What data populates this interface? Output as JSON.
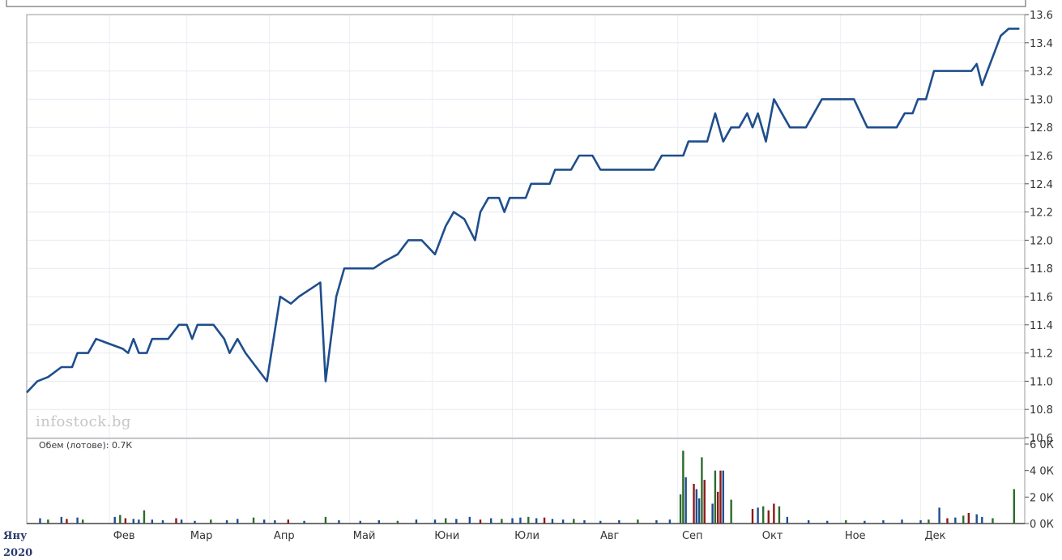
{
  "chart_data": [
    {
      "type": "line",
      "watermark": "infostock.bg",
      "x_range": [
        "2020-01-01",
        "2020-12-31"
      ],
      "ylim": [
        10.6,
        13.6
      ],
      "yticks": [
        "13.6",
        "13.4",
        "13.2",
        "13.0",
        "12.8",
        "12.6",
        "12.4",
        "12.2",
        "12.0",
        "11.8",
        "11.6",
        "11.4",
        "11.2",
        "11.0",
        "10.8",
        "10.6"
      ],
      "xticks": [
        {
          "label": "Яну",
          "date": "2020-01-01"
        },
        {
          "label": "Фев",
          "date": "2020-02-01"
        },
        {
          "label": "Мар",
          "date": "2020-03-01"
        },
        {
          "label": "Апр",
          "date": "2020-04-01"
        },
        {
          "label": "Май",
          "date": "2020-05-01"
        },
        {
          "label": "Юни",
          "date": "2020-06-01"
        },
        {
          "label": "Юли",
          "date": "2020-07-01"
        },
        {
          "label": "Авг",
          "date": "2020-08-01"
        },
        {
          "label": "Сеп",
          "date": "2020-09-01"
        },
        {
          "label": "Окт",
          "date": "2020-10-01"
        },
        {
          "label": "Ное",
          "date": "2020-11-01"
        },
        {
          "label": "Дек",
          "date": "2020-12-01"
        }
      ],
      "year_label": "2020",
      "grid": true,
      "color": "#1f4e8c",
      "series": [
        {
          "points": [
            [
              "2020-01-01",
              10.92
            ],
            [
              "2020-01-05",
              11.0
            ],
            [
              "2020-01-09",
              11.03
            ],
            [
              "2020-01-14",
              11.1
            ],
            [
              "2020-01-18",
              11.1
            ],
            [
              "2020-01-20",
              11.2
            ],
            [
              "2020-01-24",
              11.2
            ],
            [
              "2020-01-27",
              11.3
            ],
            [
              "2020-02-06",
              11.23
            ],
            [
              "2020-02-08",
              11.2
            ],
            [
              "2020-02-10",
              11.3
            ],
            [
              "2020-02-12",
              11.2
            ],
            [
              "2020-02-15",
              11.2
            ],
            [
              "2020-02-17",
              11.3
            ],
            [
              "2020-02-23",
              11.3
            ],
            [
              "2020-02-27",
              11.4
            ],
            [
              "2020-03-01",
              11.4
            ],
            [
              "2020-03-03",
              11.3
            ],
            [
              "2020-03-05",
              11.4
            ],
            [
              "2020-03-11",
              11.4
            ],
            [
              "2020-03-15",
              11.3
            ],
            [
              "2020-03-17",
              11.2
            ],
            [
              "2020-03-20",
              11.3
            ],
            [
              "2020-03-23",
              11.2
            ],
            [
              "2020-03-31",
              11.0
            ],
            [
              "2020-04-05",
              11.6
            ],
            [
              "2020-04-09",
              11.55
            ],
            [
              "2020-04-12",
              11.6
            ],
            [
              "2020-04-16",
              11.65
            ],
            [
              "2020-04-20",
              11.7
            ],
            [
              "2020-04-22",
              11.0
            ],
            [
              "2020-04-26",
              11.6
            ],
            [
              "2020-04-29",
              11.8
            ],
            [
              "2020-05-06",
              11.8
            ],
            [
              "2020-05-10",
              11.8
            ],
            [
              "2020-05-14",
              11.85
            ],
            [
              "2020-05-19",
              11.9
            ],
            [
              "2020-05-23",
              12.0
            ],
            [
              "2020-05-28",
              12.0
            ],
            [
              "2020-06-02",
              11.9
            ],
            [
              "2020-06-06",
              12.1
            ],
            [
              "2020-06-09",
              12.2
            ],
            [
              "2020-06-13",
              12.15
            ],
            [
              "2020-06-17",
              12.0
            ],
            [
              "2020-06-19",
              12.2
            ],
            [
              "2020-06-22",
              12.3
            ],
            [
              "2020-06-26",
              12.3
            ],
            [
              "2020-06-28",
              12.2
            ],
            [
              "2020-06-30",
              12.3
            ],
            [
              "2020-07-06",
              12.3
            ],
            [
              "2020-07-08",
              12.4
            ],
            [
              "2020-07-15",
              12.4
            ],
            [
              "2020-07-17",
              12.5
            ],
            [
              "2020-07-23",
              12.5
            ],
            [
              "2020-07-26",
              12.6
            ],
            [
              "2020-07-31",
              12.6
            ],
            [
              "2020-08-03",
              12.5
            ],
            [
              "2020-08-23",
              12.5
            ],
            [
              "2020-08-26",
              12.6
            ],
            [
              "2020-09-03",
              12.6
            ],
            [
              "2020-09-05",
              12.7
            ],
            [
              "2020-09-12",
              12.7
            ],
            [
              "2020-09-15",
              12.9
            ],
            [
              "2020-09-18",
              12.7
            ],
            [
              "2020-09-21",
              12.8
            ],
            [
              "2020-09-24",
              12.8
            ],
            [
              "2020-09-27",
              12.9
            ],
            [
              "2020-09-29",
              12.8
            ],
            [
              "2020-10-01",
              12.9
            ],
            [
              "2020-10-04",
              12.7
            ],
            [
              "2020-10-07",
              13.0
            ],
            [
              "2020-10-10",
              12.9
            ],
            [
              "2020-10-13",
              12.8
            ],
            [
              "2020-10-19",
              12.8
            ],
            [
              "2020-10-22",
              12.9
            ],
            [
              "2020-10-25",
              13.0
            ],
            [
              "2020-11-06",
              13.0
            ],
            [
              "2020-11-11",
              12.8
            ],
            [
              "2020-11-22",
              12.8
            ],
            [
              "2020-11-25",
              12.9
            ],
            [
              "2020-11-28",
              12.9
            ],
            [
              "2020-11-30",
              13.0
            ],
            [
              "2020-12-03",
              13.0
            ],
            [
              "2020-12-06",
              13.2
            ],
            [
              "2020-12-20",
              13.2
            ],
            [
              "2020-12-22",
              13.25
            ],
            [
              "2020-12-24",
              13.1
            ],
            [
              "2020-12-28",
              13.3
            ],
            [
              "2020-12-31",
              13.45
            ],
            [
              "2021-01-03",
              13.5
            ],
            [
              "2021-01-07",
              13.5
            ]
          ]
        }
      ]
    },
    {
      "type": "bar",
      "title": "Обем (лотове): 0.7К",
      "ylim": [
        0,
        6000
      ],
      "yticks": [
        "6 0К",
        "4 0К",
        "2 0К",
        "0 0К"
      ],
      "colors": [
        "#1f4e8c",
        "#2d6b2d",
        "#8b1a1a"
      ],
      "volume": [
        [
          "2020-01-06",
          400,
          "#1f4e8c"
        ],
        [
          "2020-01-09",
          300,
          "#2d6b2d"
        ],
        [
          "2020-01-14",
          500,
          "#1f4e8c"
        ],
        [
          "2020-01-16",
          350,
          "#8b1a1a"
        ],
        [
          "2020-01-20",
          450,
          "#1f4e8c"
        ],
        [
          "2020-01-22",
          300,
          "#2d6b2d"
        ],
        [
          "2020-02-03",
          500,
          "#1f4e8c"
        ],
        [
          "2020-02-05",
          650,
          "#2d6b2d"
        ],
        [
          "2020-02-07",
          400,
          "#8b1a1a"
        ],
        [
          "2020-02-10",
          350,
          "#1f4e8c"
        ],
        [
          "2020-02-12",
          300,
          "#1f4e8c"
        ],
        [
          "2020-02-14",
          1000,
          "#2d6b2d"
        ],
        [
          "2020-02-17",
          300,
          "#1f4e8c"
        ],
        [
          "2020-02-21",
          250,
          "#1f4e8c"
        ],
        [
          "2020-02-26",
          400,
          "#8b1a1a"
        ],
        [
          "2020-02-28",
          300,
          "#1f4e8c"
        ],
        [
          "2020-03-04",
          200,
          "#1f4e8c"
        ],
        [
          "2020-03-10",
          300,
          "#2d6b2d"
        ],
        [
          "2020-03-16",
          250,
          "#1f4e8c"
        ],
        [
          "2020-03-20",
          350,
          "#1f4e8c"
        ],
        [
          "2020-03-26",
          450,
          "#2d6b2d"
        ],
        [
          "2020-03-30",
          300,
          "#1f4e8c"
        ],
        [
          "2020-04-03",
          250,
          "#1f4e8c"
        ],
        [
          "2020-04-08",
          300,
          "#8b1a1a"
        ],
        [
          "2020-04-14",
          200,
          "#1f4e8c"
        ],
        [
          "2020-04-22",
          500,
          "#2d6b2d"
        ],
        [
          "2020-04-27",
          250,
          "#1f4e8c"
        ],
        [
          "2020-05-05",
          200,
          "#1f4e8c"
        ],
        [
          "2020-05-12",
          250,
          "#1f4e8c"
        ],
        [
          "2020-05-19",
          200,
          "#2d6b2d"
        ],
        [
          "2020-05-26",
          300,
          "#1f4e8c"
        ],
        [
          "2020-06-02",
          300,
          "#1f4e8c"
        ],
        [
          "2020-06-06",
          400,
          "#2d6b2d"
        ],
        [
          "2020-06-10",
          350,
          "#1f4e8c"
        ],
        [
          "2020-06-15",
          500,
          "#1f4e8c"
        ],
        [
          "2020-06-19",
          300,
          "#8b1a1a"
        ],
        [
          "2020-06-23",
          400,
          "#1f4e8c"
        ],
        [
          "2020-06-27",
          350,
          "#2d6b2d"
        ],
        [
          "2020-07-01",
          400,
          "#1f4e8c"
        ],
        [
          "2020-07-04",
          450,
          "#1f4e8c"
        ],
        [
          "2020-07-07",
          500,
          "#2d6b2d"
        ],
        [
          "2020-07-10",
          400,
          "#1f4e8c"
        ],
        [
          "2020-07-13",
          450,
          "#8b1a1a"
        ],
        [
          "2020-07-16",
          350,
          "#1f4e8c"
        ],
        [
          "2020-07-20",
          300,
          "#1f4e8c"
        ],
        [
          "2020-07-24",
          350,
          "#2d6b2d"
        ],
        [
          "2020-07-28",
          250,
          "#1f4e8c"
        ],
        [
          "2020-08-03",
          200,
          "#1f4e8c"
        ],
        [
          "2020-08-10",
          250,
          "#1f4e8c"
        ],
        [
          "2020-08-17",
          300,
          "#2d6b2d"
        ],
        [
          "2020-08-24",
          250,
          "#1f4e8c"
        ],
        [
          "2020-08-29",
          300,
          "#1f4e8c"
        ],
        [
          "2020-09-02",
          2200,
          "#2d6b2d"
        ],
        [
          "2020-09-03",
          5500,
          "#2d6b2d"
        ],
        [
          "2020-09-04",
          3500,
          "#1f4e8c"
        ],
        [
          "2020-09-07",
          3000,
          "#8b1a1a"
        ],
        [
          "2020-09-08",
          2600,
          "#1f4e8c"
        ],
        [
          "2020-09-09",
          1900,
          "#1f4e8c"
        ],
        [
          "2020-09-10",
          5000,
          "#2d6b2d"
        ],
        [
          "2020-09-11",
          3300,
          "#8b1a1a"
        ],
        [
          "2020-09-14",
          1500,
          "#1f4e8c"
        ],
        [
          "2020-09-15",
          4000,
          "#2d6b2d"
        ],
        [
          "2020-09-16",
          2400,
          "#8b1a1a"
        ],
        [
          "2020-09-17",
          4000,
          "#8b1a1a"
        ],
        [
          "2020-09-18",
          4000,
          "#1f4e8c"
        ],
        [
          "2020-09-21",
          1800,
          "#2d6b2d"
        ],
        [
          "2020-09-29",
          1100,
          "#8b1a1a"
        ],
        [
          "2020-10-01",
          1200,
          "#1f4e8c"
        ],
        [
          "2020-10-03",
          1300,
          "#2d6b2d"
        ],
        [
          "2020-10-05",
          1000,
          "#8b1a1a"
        ],
        [
          "2020-10-07",
          1500,
          "#8b1a1a"
        ],
        [
          "2020-10-09",
          1300,
          "#2d6b2d"
        ],
        [
          "2020-10-12",
          500,
          "#1f4e8c"
        ],
        [
          "2020-10-20",
          250,
          "#1f4e8c"
        ],
        [
          "2020-10-27",
          200,
          "#1f4e8c"
        ],
        [
          "2020-11-03",
          250,
          "#2d6b2d"
        ],
        [
          "2020-11-10",
          200,
          "#1f4e8c"
        ],
        [
          "2020-11-17",
          250,
          "#1f4e8c"
        ],
        [
          "2020-11-24",
          300,
          "#1f4e8c"
        ],
        [
          "2020-12-01",
          250,
          "#1f4e8c"
        ],
        [
          "2020-12-04",
          300,
          "#2d6b2d"
        ],
        [
          "2020-12-08",
          1200,
          "#1f4e8c"
        ],
        [
          "2020-12-11",
          400,
          "#8b1a1a"
        ],
        [
          "2020-12-14",
          450,
          "#1f4e8c"
        ],
        [
          "2020-12-17",
          600,
          "#2d6b2d"
        ],
        [
          "2020-12-19",
          800,
          "#8b1a1a"
        ],
        [
          "2020-12-22",
          700,
          "#1f4e8c"
        ],
        [
          "2020-12-24",
          500,
          "#1f4e8c"
        ],
        [
          "2020-12-28",
          400,
          "#2d6b2d"
        ],
        [
          "2021-01-05",
          2600,
          "#2d6b2d"
        ]
      ]
    }
  ]
}
